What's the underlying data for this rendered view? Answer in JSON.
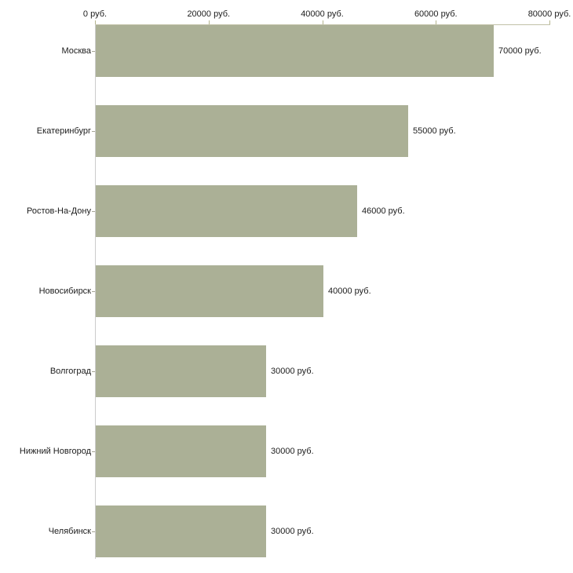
{
  "chart_data": {
    "type": "bar",
    "orientation": "horizontal",
    "title": "",
    "xlabel": "",
    "ylabel": "",
    "grid": false,
    "legend": null,
    "xlim": [
      0,
      80000
    ],
    "x_ticks": [
      {
        "value": 0,
        "label": "0 руб."
      },
      {
        "value": 20000,
        "label": "20000 руб."
      },
      {
        "value": 40000,
        "label": "40000 руб."
      },
      {
        "value": 60000,
        "label": "60000 руб."
      },
      {
        "value": 80000,
        "label": "80000 руб."
      }
    ],
    "categories": [
      "Москва",
      "Екатеринбург",
      "Ростов-На-Дону",
      "Новосибирск",
      "Волгоград",
      "Нижний Новгород",
      "Челябинск"
    ],
    "values": [
      70000,
      55000,
      46000,
      40000,
      30000,
      30000,
      30000
    ],
    "value_labels": [
      "70000 руб.",
      "55000 руб.",
      "46000 руб.",
      "40000 руб.",
      "30000 руб.",
      "30000 руб.",
      "30000 руб."
    ],
    "colors": {
      "bar_fill": "#abb096",
      "axis_top_line": "#c2c2a8",
      "axis_left_line": "#cccccc",
      "tick_mark": "#b5b58f",
      "category_tick": "#a6a696",
      "text": "#1c1c1c",
      "background": "#ffffff"
    }
  }
}
